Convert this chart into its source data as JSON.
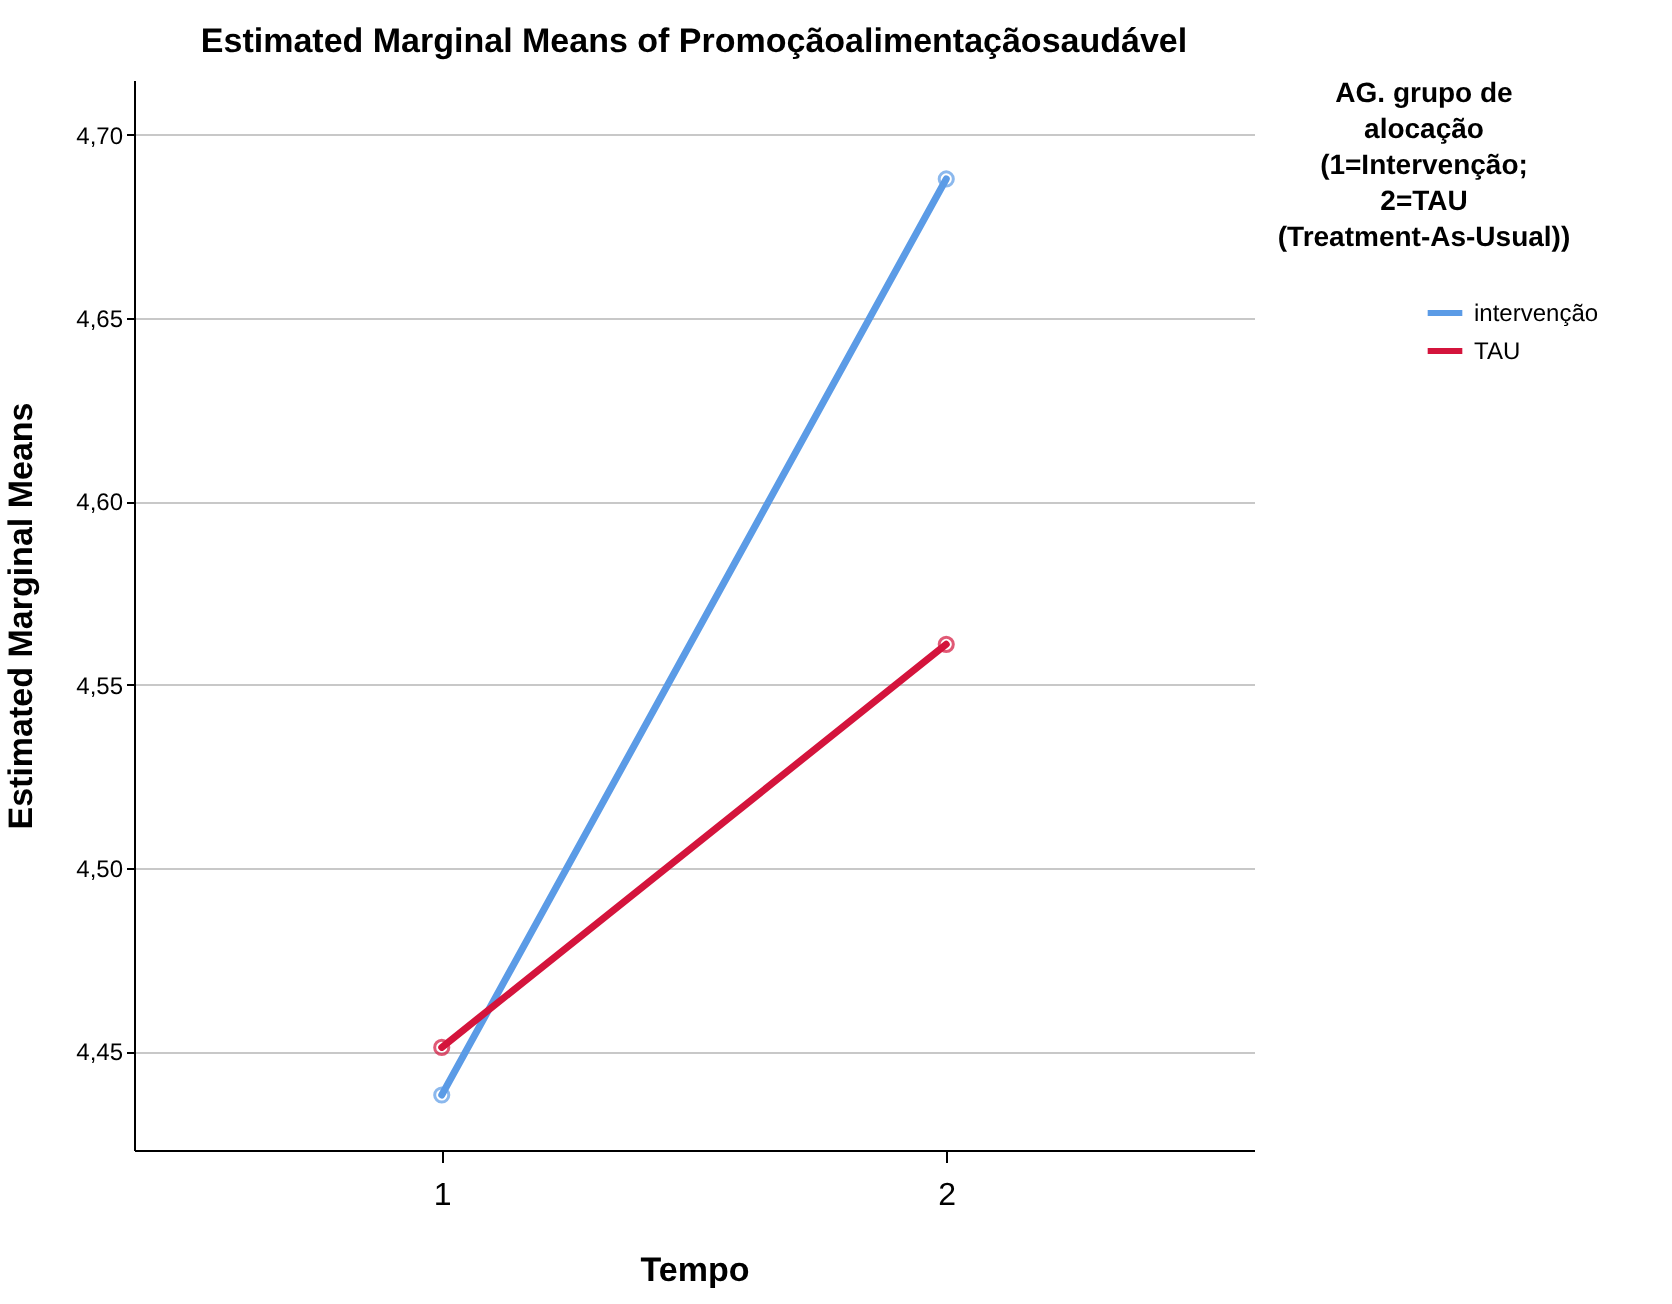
{
  "chart_data": {
    "type": "line",
    "title": "Estimated Marginal Means of Promoçãoalimentaçãosaudável",
    "xlabel": "Tempo",
    "ylabel": "Estimated Marginal Means",
    "legend_title": "AG. grupo de alocação (1=Intervenção; 2=TAU (Treatment-As-Usual))",
    "categories": [
      "1",
      "2"
    ],
    "series": [
      {
        "name": "intervenção",
        "color": "#5b9be6",
        "values": [
          4.438,
          4.688
        ]
      },
      {
        "name": "TAU",
        "color": "#d4143c",
        "values": [
          4.451,
          4.561
        ]
      }
    ],
    "ylim": [
      4.423,
      4.715
    ],
    "yticks": [
      {
        "value": 4.45,
        "label": "4,45"
      },
      {
        "value": 4.5,
        "label": "4,50"
      },
      {
        "value": 4.55,
        "label": "4,55"
      },
      {
        "value": 4.6,
        "label": "4,60"
      },
      {
        "value": 4.65,
        "label": "4,65"
      },
      {
        "value": 4.7,
        "label": "4,70"
      }
    ],
    "grid": "y",
    "legend": "top right",
    "marker": "circle",
    "line_style": "solid"
  }
}
